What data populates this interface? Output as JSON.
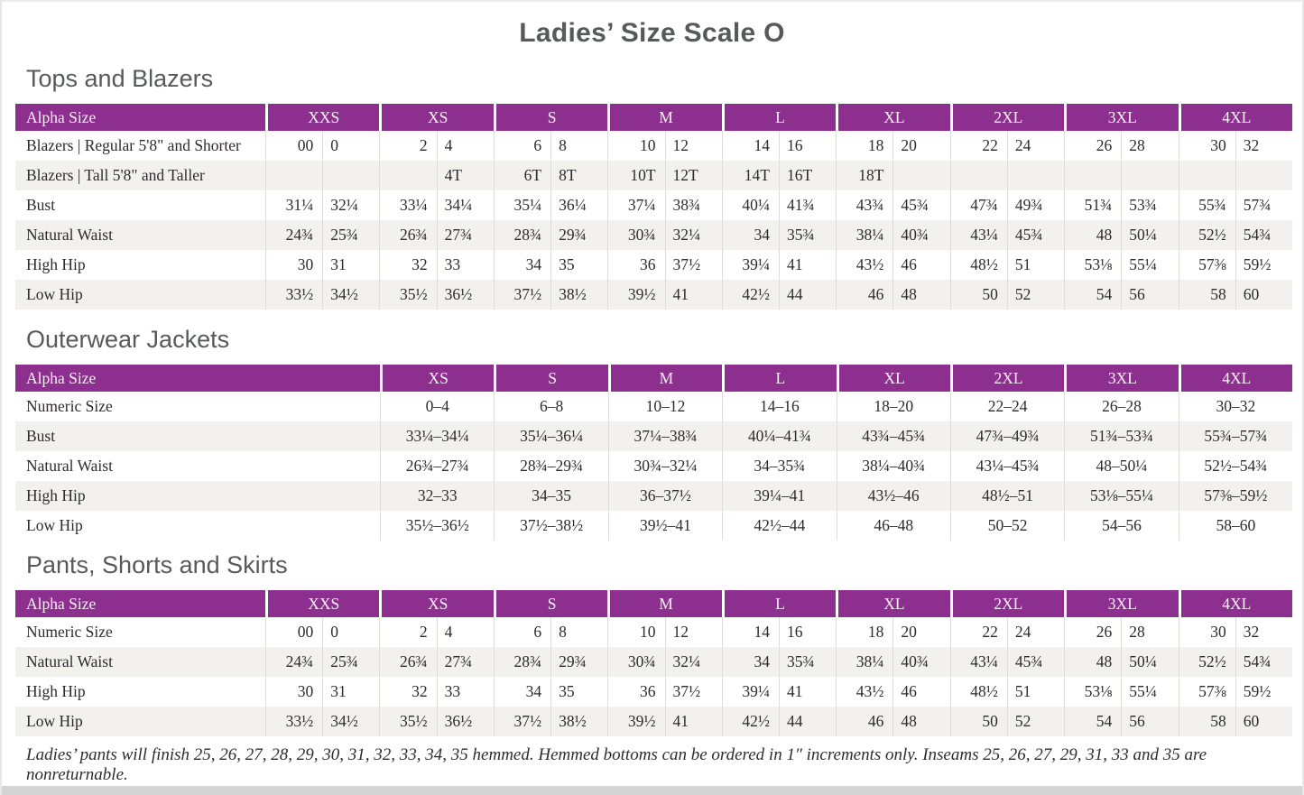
{
  "page": {
    "title": "Ladies’ Size Scale O",
    "footnote": "Ladies’ pants will finish 25, 26, 27, 28, 29, 30, 31, 32, 33, 34, 35 hemmed. Hemmed bottoms can be ordered in 1″ increments only. Inseams 25, 26, 27, 29, 31, 33 and 35 are nonreturnable."
  },
  "colors": {
    "header_purple": "#8c2f8e",
    "row_stripe": "#f2f1ee",
    "heading_gray": "#58595b",
    "body_text": "#2f2b2c"
  },
  "tables": [
    {
      "id": "tops-and-blazers",
      "section_title": "Tops and Blazers",
      "layout": "paired",
      "header_label": "Alpha Size",
      "sizes": [
        "XXS",
        "XS",
        "S",
        "M",
        "L",
        "XL",
        "2XL",
        "3XL",
        "4XL"
      ],
      "rows": [
        {
          "label": "Blazers | Regular 5'8\" and Shorter",
          "values": [
            [
              "00",
              "0"
            ],
            [
              "2",
              "4"
            ],
            [
              "6",
              "8"
            ],
            [
              "10",
              "12"
            ],
            [
              "14",
              "16"
            ],
            [
              "18",
              "20"
            ],
            [
              "22",
              "24"
            ],
            [
              "26",
              "28"
            ],
            [
              "30",
              "32"
            ]
          ]
        },
        {
          "label": "Blazers | Tall 5'8\" and Taller",
          "values": [
            [
              "",
              ""
            ],
            [
              "",
              "4T"
            ],
            [
              "6T",
              "8T"
            ],
            [
              "10T",
              "12T"
            ],
            [
              "14T",
              "16T"
            ],
            [
              "18T",
              ""
            ],
            [
              "",
              ""
            ],
            [
              "",
              ""
            ],
            [
              "",
              ""
            ]
          ]
        },
        {
          "label": "Bust",
          "values": [
            [
              "31¼",
              "32¼"
            ],
            [
              "33¼",
              "34¼"
            ],
            [
              "35¼",
              "36¼"
            ],
            [
              "37¼",
              "38¾"
            ],
            [
              "40¼",
              "41¾"
            ],
            [
              "43¾",
              "45¾"
            ],
            [
              "47¾",
              "49¾"
            ],
            [
              "51¾",
              "53¾"
            ],
            [
              "55¾",
              "57¾"
            ]
          ]
        },
        {
          "label": "Natural Waist",
          "values": [
            [
              "24¾",
              "25¾"
            ],
            [
              "26¾",
              "27¾"
            ],
            [
              "28¾",
              "29¾"
            ],
            [
              "30¾",
              "32¼"
            ],
            [
              "34",
              "35¾"
            ],
            [
              "38¼",
              "40¾"
            ],
            [
              "43¼",
              "45¾"
            ],
            [
              "48",
              "50¼"
            ],
            [
              "52½",
              "54¾"
            ]
          ]
        },
        {
          "label": "High Hip",
          "values": [
            [
              "30",
              "31"
            ],
            [
              "32",
              "33"
            ],
            [
              "34",
              "35"
            ],
            [
              "36",
              "37½"
            ],
            [
              "39¼",
              "41"
            ],
            [
              "43½",
              "46"
            ],
            [
              "48½",
              "51"
            ],
            [
              "53⅛",
              "55¼"
            ],
            [
              "57⅜",
              "59½"
            ]
          ]
        },
        {
          "label": "Low Hip",
          "values": [
            [
              "33½",
              "34½"
            ],
            [
              "35½",
              "36½"
            ],
            [
              "37½",
              "38½"
            ],
            [
              "39½",
              "41"
            ],
            [
              "42½",
              "44"
            ],
            [
              "46",
              "48"
            ],
            [
              "50",
              "52"
            ],
            [
              "54",
              "56"
            ],
            [
              "58",
              "60"
            ]
          ]
        }
      ]
    },
    {
      "id": "outerwear-jackets",
      "section_title": "Outerwear Jackets",
      "layout": "range",
      "header_label": "Alpha Size",
      "sizes": [
        "XS",
        "S",
        "M",
        "L",
        "XL",
        "2XL",
        "3XL",
        "4XL"
      ],
      "rows": [
        {
          "label": "Numeric Size",
          "values": [
            "0–4",
            "6–8",
            "10–12",
            "14–16",
            "18–20",
            "22–24",
            "26–28",
            "30–32"
          ]
        },
        {
          "label": "Bust",
          "values": [
            "33¼–34¼",
            "35¼–36¼",
            "37¼–38¾",
            "40¼–41¾",
            "43¾–45¾",
            "47¾–49¾",
            "51¾–53¾",
            "55¾–57¾"
          ]
        },
        {
          "label": "Natural Waist",
          "values": [
            "26¾–27¾",
            "28¾–29¾",
            "30¾–32¼",
            "34–35¾",
            "38¼–40¾",
            "43¼–45¾",
            "48–50¼",
            "52½–54¾"
          ]
        },
        {
          "label": "High Hip",
          "values": [
            "32–33",
            "34–35",
            "36–37½",
            "39¼–41",
            "43½–46",
            "48½–51",
            "53⅛–55¼",
            "57⅜–59½"
          ]
        },
        {
          "label": "Low Hip",
          "values": [
            "35½–36½",
            "37½–38½",
            "39½–41",
            "42½–44",
            "46–48",
            "50–52",
            "54–56",
            "58–60"
          ]
        }
      ]
    },
    {
      "id": "pants-shorts-and-skirts",
      "section_title": "Pants, Shorts and Skirts",
      "layout": "paired",
      "header_label": "Alpha Size",
      "sizes": [
        "XXS",
        "XS",
        "S",
        "M",
        "L",
        "XL",
        "2XL",
        "3XL",
        "4XL"
      ],
      "rows": [
        {
          "label": "Numeric Size",
          "values": [
            [
              "00",
              "0"
            ],
            [
              "2",
              "4"
            ],
            [
              "6",
              "8"
            ],
            [
              "10",
              "12"
            ],
            [
              "14",
              "16"
            ],
            [
              "18",
              "20"
            ],
            [
              "22",
              "24"
            ],
            [
              "26",
              "28"
            ],
            [
              "30",
              "32"
            ]
          ]
        },
        {
          "label": "Natural Waist",
          "values": [
            [
              "24¾",
              "25¾"
            ],
            [
              "26¾",
              "27¾"
            ],
            [
              "28¾",
              "29¾"
            ],
            [
              "30¾",
              "32¼"
            ],
            [
              "34",
              "35¾"
            ],
            [
              "38¼",
              "40¾"
            ],
            [
              "43¼",
              "45¾"
            ],
            [
              "48",
              "50¼"
            ],
            [
              "52½",
              "54¾"
            ]
          ]
        },
        {
          "label": "High Hip",
          "values": [
            [
              "30",
              "31"
            ],
            [
              "32",
              "33"
            ],
            [
              "34",
              "35"
            ],
            [
              "36",
              "37½"
            ],
            [
              "39¼",
              "41"
            ],
            [
              "43½",
              "46"
            ],
            [
              "48½",
              "51"
            ],
            [
              "53⅛",
              "55¼"
            ],
            [
              "57⅜",
              "59½"
            ]
          ]
        },
        {
          "label": "Low Hip",
          "values": [
            [
              "33½",
              "34½"
            ],
            [
              "35½",
              "36½"
            ],
            [
              "37½",
              "38½"
            ],
            [
              "39½",
              "41"
            ],
            [
              "42½",
              "44"
            ],
            [
              "46",
              "48"
            ],
            [
              "50",
              "52"
            ],
            [
              "54",
              "56"
            ],
            [
              "58",
              "60"
            ]
          ]
        }
      ]
    }
  ]
}
